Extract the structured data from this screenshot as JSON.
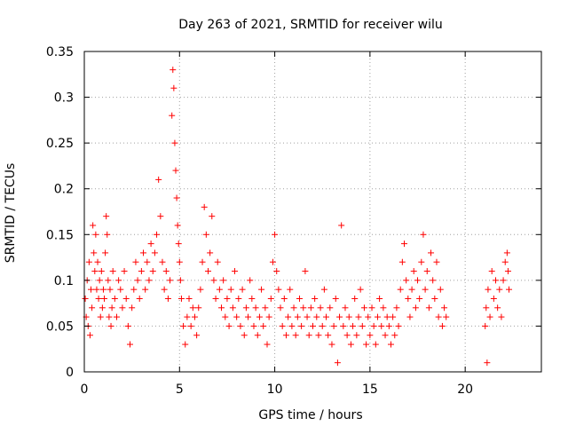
{
  "chart_data": {
    "type": "scatter",
    "title": "Day 263 of 2021, SRMTID for receiver wilu",
    "xlabel": "GPS time / hours",
    "ylabel": "SRMTID / TECUs",
    "xlim": [
      0,
      24
    ],
    "ylim": [
      0,
      0.35
    ],
    "xticks": [
      0,
      5,
      10,
      15,
      20
    ],
    "yticks": [
      0,
      0.05,
      0.1,
      0.15,
      0.2,
      0.25,
      0.3,
      0.35
    ],
    "xtick_labels": [
      "0",
      "5",
      "10",
      "15",
      "20"
    ],
    "ytick_labels": [
      "0",
      "0.05",
      "0.1",
      "0.15",
      "0.2",
      "0.25",
      "0.3",
      "0.35"
    ],
    "grid": true,
    "marker": "+",
    "series_color": "#ff0000",
    "series": [
      {
        "name": "SRMTID",
        "points": [
          [
            0.05,
            0.08
          ],
          [
            0.1,
            0.06
          ],
          [
            0.15,
            0.1
          ],
          [
            0.2,
            0.05
          ],
          [
            0.25,
            0.12
          ],
          [
            0.3,
            0.04
          ],
          [
            0.35,
            0.09
          ],
          [
            0.4,
            0.07
          ],
          [
            0.45,
            0.16
          ],
          [
            0.5,
            0.13
          ],
          [
            0.55,
            0.11
          ],
          [
            0.6,
            0.15
          ],
          [
            0.65,
            0.09
          ],
          [
            0.7,
            0.12
          ],
          [
            0.75,
            0.08
          ],
          [
            0.8,
            0.1
          ],
          [
            0.85,
            0.06
          ],
          [
            0.9,
            0.11
          ],
          [
            0.95,
            0.07
          ],
          [
            1.0,
            0.09
          ],
          [
            1.05,
            0.08
          ],
          [
            1.1,
            0.13
          ],
          [
            1.15,
            0.17
          ],
          [
            1.2,
            0.15
          ],
          [
            1.25,
            0.1
          ],
          [
            1.3,
            0.06
          ],
          [
            1.35,
            0.09
          ],
          [
            1.4,
            0.05
          ],
          [
            1.45,
            0.07
          ],
          [
            1.5,
            0.11
          ],
          [
            1.6,
            0.08
          ],
          [
            1.7,
            0.06
          ],
          [
            1.8,
            0.1
          ],
          [
            1.9,
            0.09
          ],
          [
            2.0,
            0.07
          ],
          [
            2.1,
            0.11
          ],
          [
            2.2,
            0.08
          ],
          [
            2.3,
            0.05
          ],
          [
            2.4,
            0.03
          ],
          [
            2.5,
            0.07
          ],
          [
            2.6,
            0.09
          ],
          [
            2.7,
            0.12
          ],
          [
            2.8,
            0.1
          ],
          [
            2.9,
            0.08
          ],
          [
            3.0,
            0.11
          ],
          [
            3.1,
            0.13
          ],
          [
            3.2,
            0.09
          ],
          [
            3.3,
            0.12
          ],
          [
            3.4,
            0.1
          ],
          [
            3.5,
            0.14
          ],
          [
            3.6,
            0.11
          ],
          [
            3.7,
            0.13
          ],
          [
            3.8,
            0.15
          ],
          [
            3.9,
            0.21
          ],
          [
            4.0,
            0.17
          ],
          [
            4.1,
            0.12
          ],
          [
            4.2,
            0.09
          ],
          [
            4.3,
            0.11
          ],
          [
            4.4,
            0.08
          ],
          [
            4.5,
            0.1
          ],
          [
            4.6,
            0.28
          ],
          [
            4.65,
            0.33
          ],
          [
            4.7,
            0.31
          ],
          [
            4.75,
            0.25
          ],
          [
            4.8,
            0.22
          ],
          [
            4.85,
            0.19
          ],
          [
            4.9,
            0.16
          ],
          [
            4.95,
            0.14
          ],
          [
            5.0,
            0.12
          ],
          [
            5.05,
            0.1
          ],
          [
            5.1,
            0.08
          ],
          [
            5.2,
            0.05
          ],
          [
            5.3,
            0.03
          ],
          [
            5.4,
            0.06
          ],
          [
            5.5,
            0.08
          ],
          [
            5.6,
            0.05
          ],
          [
            5.7,
            0.07
          ],
          [
            5.8,
            0.06
          ],
          [
            5.9,
            0.04
          ],
          [
            6.0,
            0.07
          ],
          [
            6.1,
            0.09
          ],
          [
            6.2,
            0.12
          ],
          [
            6.3,
            0.18
          ],
          [
            6.4,
            0.15
          ],
          [
            6.5,
            0.11
          ],
          [
            6.6,
            0.13
          ],
          [
            6.7,
            0.17
          ],
          [
            6.8,
            0.1
          ],
          [
            6.9,
            0.08
          ],
          [
            7.0,
            0.12
          ],
          [
            7.1,
            0.09
          ],
          [
            7.2,
            0.07
          ],
          [
            7.3,
            0.1
          ],
          [
            7.4,
            0.06
          ],
          [
            7.5,
            0.08
          ],
          [
            7.6,
            0.05
          ],
          [
            7.7,
            0.09
          ],
          [
            7.8,
            0.07
          ],
          [
            7.9,
            0.11
          ],
          [
            8.0,
            0.06
          ],
          [
            8.1,
            0.08
          ],
          [
            8.2,
            0.05
          ],
          [
            8.3,
            0.09
          ],
          [
            8.4,
            0.04
          ],
          [
            8.5,
            0.07
          ],
          [
            8.6,
            0.06
          ],
          [
            8.7,
            0.1
          ],
          [
            8.8,
            0.08
          ],
          [
            8.9,
            0.05
          ],
          [
            9.0,
            0.07
          ],
          [
            9.1,
            0.04
          ],
          [
            9.2,
            0.06
          ],
          [
            9.3,
            0.09
          ],
          [
            9.4,
            0.05
          ],
          [
            9.5,
            0.07
          ],
          [
            9.6,
            0.03
          ],
          [
            9.7,
            0.06
          ],
          [
            9.8,
            0.08
          ],
          [
            9.9,
            0.12
          ],
          [
            10.0,
            0.15
          ],
          [
            10.1,
            0.11
          ],
          [
            10.2,
            0.09
          ],
          [
            10.3,
            0.07
          ],
          [
            10.4,
            0.05
          ],
          [
            10.5,
            0.08
          ],
          [
            10.6,
            0.04
          ],
          [
            10.7,
            0.06
          ],
          [
            10.8,
            0.09
          ],
          [
            10.9,
            0.05
          ],
          [
            11.0,
            0.07
          ],
          [
            11.1,
            0.04
          ],
          [
            11.2,
            0.06
          ],
          [
            11.3,
            0.08
          ],
          [
            11.4,
            0.05
          ],
          [
            11.5,
            0.07
          ],
          [
            11.6,
            0.11
          ],
          [
            11.7,
            0.06
          ],
          [
            11.8,
            0.04
          ],
          [
            11.9,
            0.07
          ],
          [
            12.0,
            0.05
          ],
          [
            12.1,
            0.08
          ],
          [
            12.2,
            0.06
          ],
          [
            12.3,
            0.04
          ],
          [
            12.4,
            0.07
          ],
          [
            12.5,
            0.05
          ],
          [
            12.6,
            0.09
          ],
          [
            12.7,
            0.06
          ],
          [
            12.8,
            0.04
          ],
          [
            12.9,
            0.07
          ],
          [
            13.0,
            0.03
          ],
          [
            13.1,
            0.05
          ],
          [
            13.2,
            0.08
          ],
          [
            13.3,
            0.01
          ],
          [
            13.4,
            0.06
          ],
          [
            13.5,
            0.16
          ],
          [
            13.6,
            0.05
          ],
          [
            13.7,
            0.07
          ],
          [
            13.8,
            0.04
          ],
          [
            13.9,
            0.06
          ],
          [
            14.0,
            0.03
          ],
          [
            14.1,
            0.05
          ],
          [
            14.2,
            0.08
          ],
          [
            14.3,
            0.04
          ],
          [
            14.4,
            0.06
          ],
          [
            14.5,
            0.09
          ],
          [
            14.6,
            0.05
          ],
          [
            14.7,
            0.07
          ],
          [
            14.8,
            0.03
          ],
          [
            14.9,
            0.06
          ],
          [
            15.0,
            0.04
          ],
          [
            15.1,
            0.07
          ],
          [
            15.2,
            0.05
          ],
          [
            15.3,
            0.03
          ],
          [
            15.4,
            0.06
          ],
          [
            15.5,
            0.08
          ],
          [
            15.6,
            0.05
          ],
          [
            15.7,
            0.07
          ],
          [
            15.8,
            0.04
          ],
          [
            15.9,
            0.06
          ],
          [
            16.0,
            0.05
          ],
          [
            16.1,
            0.03
          ],
          [
            16.2,
            0.06
          ],
          [
            16.3,
            0.04
          ],
          [
            16.4,
            0.07
          ],
          [
            16.5,
            0.05
          ],
          [
            16.6,
            0.09
          ],
          [
            16.7,
            0.12
          ],
          [
            16.8,
            0.14
          ],
          [
            16.9,
            0.1
          ],
          [
            17.0,
            0.08
          ],
          [
            17.1,
            0.06
          ],
          [
            17.2,
            0.09
          ],
          [
            17.3,
            0.11
          ],
          [
            17.4,
            0.07
          ],
          [
            17.5,
            0.1
          ],
          [
            17.6,
            0.08
          ],
          [
            17.7,
            0.12
          ],
          [
            17.8,
            0.15
          ],
          [
            17.9,
            0.09
          ],
          [
            18.0,
            0.11
          ],
          [
            18.1,
            0.07
          ],
          [
            18.2,
            0.13
          ],
          [
            18.3,
            0.1
          ],
          [
            18.4,
            0.08
          ],
          [
            18.5,
            0.12
          ],
          [
            18.6,
            0.06
          ],
          [
            18.7,
            0.09
          ],
          [
            18.8,
            0.05
          ],
          [
            18.9,
            0.07
          ],
          [
            19.0,
            0.06
          ],
          [
            21.05,
            0.05
          ],
          [
            21.1,
            0.07
          ],
          [
            21.15,
            0.01
          ],
          [
            21.2,
            0.09
          ],
          [
            21.3,
            0.06
          ],
          [
            21.4,
            0.11
          ],
          [
            21.5,
            0.08
          ],
          [
            21.6,
            0.1
          ],
          [
            21.7,
            0.07
          ],
          [
            21.8,
            0.09
          ],
          [
            21.9,
            0.06
          ],
          [
            22.0,
            0.1
          ],
          [
            22.1,
            0.12
          ],
          [
            22.2,
            0.13
          ],
          [
            22.25,
            0.11
          ],
          [
            22.3,
            0.09
          ]
        ]
      }
    ]
  }
}
